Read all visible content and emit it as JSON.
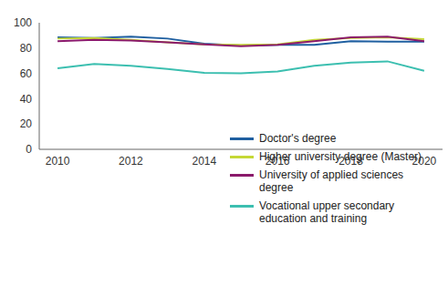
{
  "chart_data": {
    "type": "line",
    "x": [
      2010,
      2011,
      2012,
      2013,
      2014,
      2015,
      2016,
      2017,
      2018,
      2019,
      2020
    ],
    "xlim": [
      2009.5,
      2020.5
    ],
    "xticks": [
      2010,
      2012,
      2014,
      2016,
      2018,
      2020
    ],
    "ylim": [
      0,
      100
    ],
    "yticks": [
      0,
      20,
      40,
      60,
      80,
      100
    ],
    "grid": false,
    "legend": "lower right",
    "series": [
      {
        "name": "Doctor's degree",
        "color": "#1f5fa0",
        "values": [
          88.5,
          88,
          89,
          87.5,
          83.5,
          82,
          82.5,
          82.5,
          85.5,
          85,
          85
        ]
      },
      {
        "name": "Higher university degree (Master)",
        "color": "#c5d836",
        "values": [
          87.5,
          88,
          86.5,
          84.5,
          83,
          82.5,
          83,
          86.5,
          88,
          88.5,
          87
        ]
      },
      {
        "name": "University of applied sciences degree",
        "color": "#8b1a6b",
        "values": [
          85.5,
          86.5,
          86,
          84.5,
          83,
          81.5,
          82.5,
          85.5,
          88.5,
          89,
          85.5
        ]
      },
      {
        "name": "Vocational upper secondary education and training",
        "color": "#3cbfb0",
        "values": [
          64,
          67.5,
          66,
          63.5,
          60.5,
          60,
          61.5,
          66,
          68.5,
          69.5,
          62
        ]
      }
    ]
  }
}
